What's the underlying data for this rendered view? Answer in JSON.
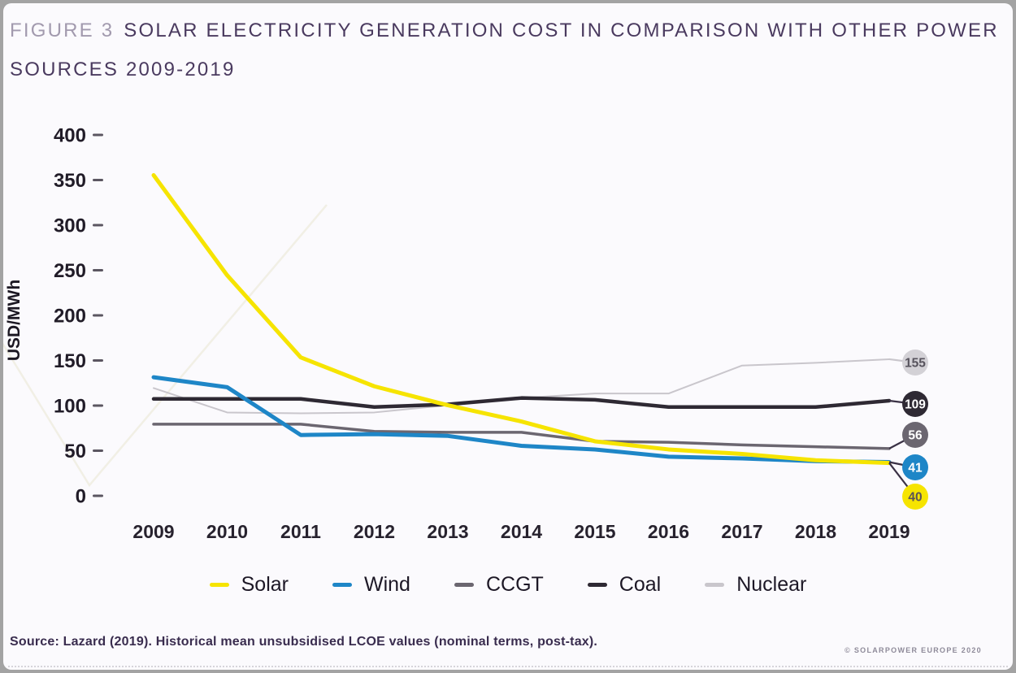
{
  "title": {
    "prefix": "FIGURE 3",
    "line1": "SOLAR ELECTRICITY GENERATION COST IN COMPARISON WITH OTHER POWER",
    "line2": "SOURCES 2009-2019"
  },
  "footer": {
    "source": "Source: Lazard (2019). Historical mean unsubsidised LCOE values (nominal terms, post-tax).",
    "copyright": "© SOLARPOWER EUROPE 2020"
  },
  "chart_data": {
    "type": "line",
    "title": "Solar electricity generation cost in comparison with other power sources 2009-2019",
    "x": [
      "2009",
      "2010",
      "2011",
      "2012",
      "2013",
      "2014",
      "2015",
      "2016",
      "2017",
      "2018",
      "2019"
    ],
    "xlabel": "",
    "ylabel": "USD/MWh",
    "ylim": [
      0,
      400
    ],
    "y_ticks": [
      0,
      50,
      100,
      150,
      200,
      250,
      300,
      350,
      400
    ],
    "grid": false,
    "legend_position": "bottom",
    "series": [
      {
        "name": "Solar",
        "color": "#f6e400",
        "end_label": 40,
        "end_text_color": "#5a5258",
        "values": [
          359,
          248,
          157,
          125,
          104,
          86,
          64,
          55,
          50,
          43,
          40
        ]
      },
      {
        "name": "Wind",
        "color": "#1e86c7",
        "end_label": 41,
        "end_text_color": "#ffffff",
        "values": [
          135,
          124,
          71,
          72,
          70,
          59,
          55,
          47,
          45,
          42,
          41
        ]
      },
      {
        "name": "CCGT",
        "color": "#6b6670",
        "end_label": 56,
        "end_text_color": "#ffffff",
        "values": [
          83,
          83,
          83,
          75,
          74,
          74,
          64,
          63,
          60,
          58,
          56
        ]
      },
      {
        "name": "Coal",
        "color": "#2e2933",
        "end_label": 109,
        "end_text_color": "#ffffff",
        "values": [
          111,
          111,
          111,
          102,
          105,
          112,
          110,
          102,
          102,
          102,
          109
        ]
      },
      {
        "name": "Nuclear",
        "color": "#c9c6cc",
        "end_label": 155,
        "end_text_color": "#57535d",
        "values": [
          123,
          96,
          95,
          96,
          104,
          112,
          117,
          117,
          148,
          151,
          155
        ]
      }
    ]
  }
}
